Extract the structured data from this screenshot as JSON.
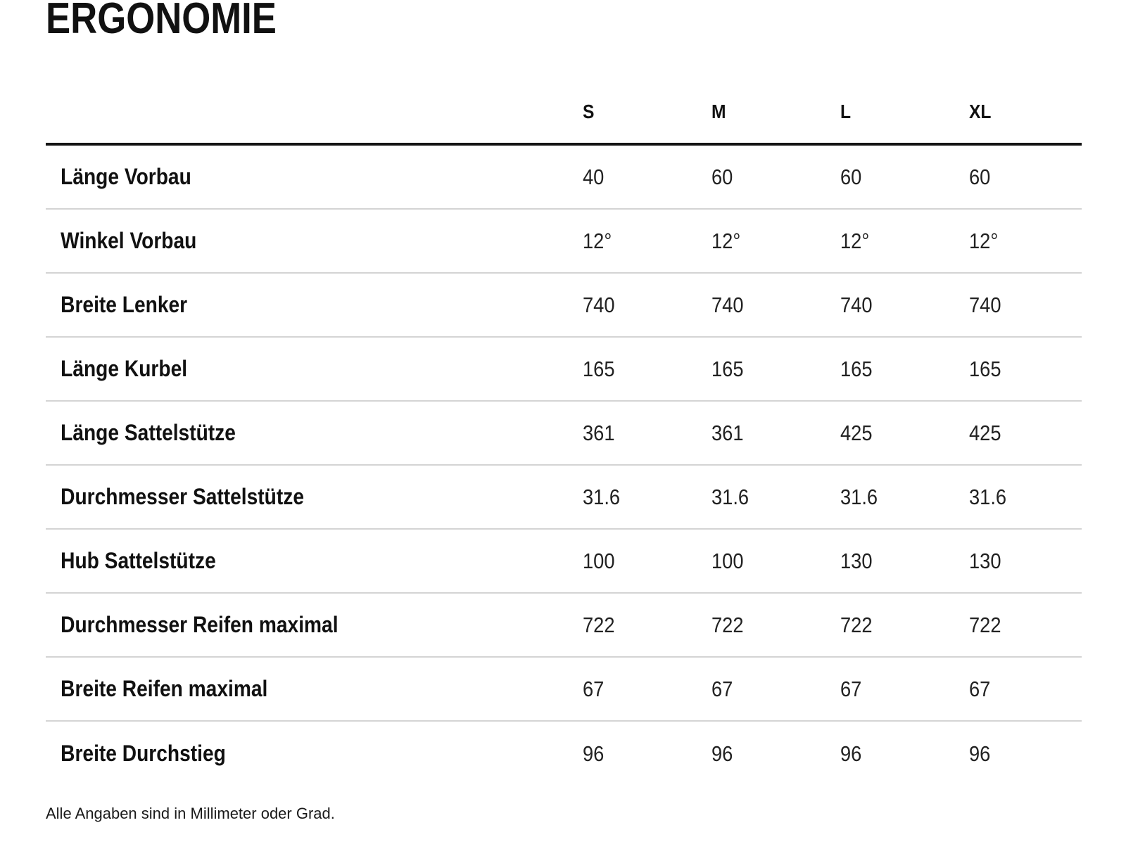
{
  "page": {
    "title": "ERGONOMIE",
    "footnote": "Alle Angaben sind in Millimeter oder Grad."
  },
  "table": {
    "columns": [
      "S",
      "M",
      "L",
      "XL"
    ],
    "rows": [
      {
        "label": "Länge Vorbau",
        "values": [
          "40",
          "60",
          "60",
          "60"
        ]
      },
      {
        "label": "Winkel Vorbau",
        "values": [
          "12°",
          "12°",
          "12°",
          "12°"
        ]
      },
      {
        "label": "Breite Lenker",
        "values": [
          "740",
          "740",
          "740",
          "740"
        ]
      },
      {
        "label": "Länge Kurbel",
        "values": [
          "165",
          "165",
          "165",
          "165"
        ]
      },
      {
        "label": "Länge Sattelstütze",
        "values": [
          "361",
          "361",
          "425",
          "425"
        ]
      },
      {
        "label": "Durchmesser Sattelstütze",
        "values": [
          "31.6",
          "31.6",
          "31.6",
          "31.6"
        ]
      },
      {
        "label": "Hub Sattelstütze",
        "values": [
          "100",
          "100",
          "130",
          "130"
        ]
      },
      {
        "label": "Durchmesser Reifen maximal",
        "values": [
          "722",
          "722",
          "722",
          "722"
        ]
      },
      {
        "label": "Breite Reifen maximal",
        "values": [
          "67",
          "67",
          "67",
          "67"
        ]
      },
      {
        "label": "Breite Durchstieg",
        "values": [
          "96",
          "96",
          "96",
          "96"
        ]
      }
    ]
  },
  "colors": {
    "text": "#1a1a1a",
    "header_rule": "#141414",
    "row_separator": "#d4d4d4",
    "background": "#ffffff"
  }
}
